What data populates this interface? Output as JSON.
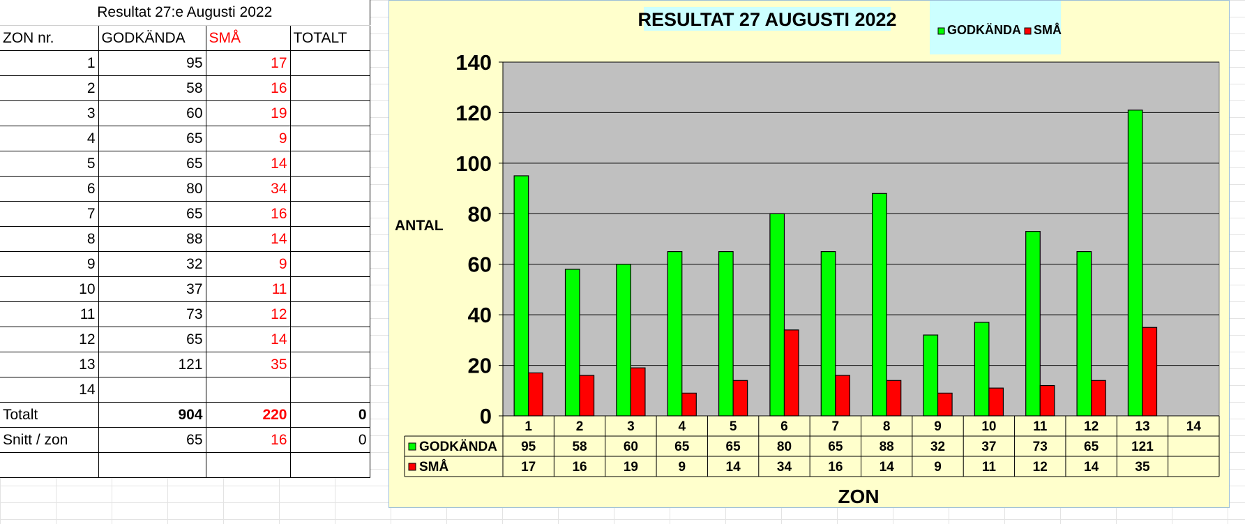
{
  "sheet": {
    "title": "Resultat 27:e Augusti 2022",
    "headers": [
      "ZON nr.",
      "GODKÄNDA",
      "SMÅ",
      "TOTALT"
    ],
    "rows": [
      {
        "zon": "1",
        "godkanda": "95",
        "sma": "17",
        "totalt": ""
      },
      {
        "zon": "2",
        "godkanda": "58",
        "sma": "16",
        "totalt": ""
      },
      {
        "zon": "3",
        "godkanda": "60",
        "sma": "19",
        "totalt": ""
      },
      {
        "zon": "4",
        "godkanda": "65",
        "sma": "9",
        "totalt": ""
      },
      {
        "zon": "5",
        "godkanda": "65",
        "sma": "14",
        "totalt": ""
      },
      {
        "zon": "6",
        "godkanda": "80",
        "sma": "34",
        "totalt": ""
      },
      {
        "zon": "7",
        "godkanda": "65",
        "sma": "16",
        "totalt": ""
      },
      {
        "zon": "8",
        "godkanda": "88",
        "sma": "14",
        "totalt": ""
      },
      {
        "zon": "9",
        "godkanda": "32",
        "sma": "9",
        "totalt": ""
      },
      {
        "zon": "10",
        "godkanda": "37",
        "sma": "11",
        "totalt": ""
      },
      {
        "zon": "11",
        "godkanda": "73",
        "sma": "12",
        "totalt": ""
      },
      {
        "zon": "12",
        "godkanda": "65",
        "sma": "14",
        "totalt": ""
      },
      {
        "zon": "13",
        "godkanda": "121",
        "sma": "35",
        "totalt": ""
      },
      {
        "zon": "14",
        "godkanda": "",
        "sma": "",
        "totalt": ""
      }
    ],
    "totals": {
      "label": "Totalt",
      "godkanda": "904",
      "sma": "220",
      "totalt": "0"
    },
    "average": {
      "label": "Snitt / zon",
      "godkanda": "65",
      "sma": "16",
      "totalt": "0"
    }
  },
  "chart_data": {
    "type": "bar",
    "title": "RESULTAT 27 AUGUSTI 2022",
    "xlabel": "ZON",
    "ylabel": "ANTAL",
    "categories": [
      "1",
      "2",
      "3",
      "4",
      "5",
      "6",
      "7",
      "8",
      "9",
      "10",
      "11",
      "12",
      "13",
      "14"
    ],
    "series": [
      {
        "name": "GODKÄNDA",
        "color": "#00ff00",
        "values": [
          95,
          58,
          60,
          65,
          65,
          80,
          65,
          88,
          32,
          37,
          73,
          65,
          121,
          null
        ]
      },
      {
        "name": "SMÅ",
        "color": "#ff0000",
        "values": [
          17,
          16,
          19,
          9,
          14,
          34,
          16,
          14,
          9,
          11,
          12,
          14,
          35,
          null
        ]
      }
    ],
    "ylim": [
      0,
      140
    ],
    "yticks": [
      "0",
      "20",
      "40",
      "60",
      "80",
      "100",
      "120",
      "140"
    ],
    "grid": true,
    "legend": "top-right",
    "data_table": true,
    "plot_background": "#c0c0c0",
    "chart_background": "#ffffcc",
    "legend_background": "#ccffff"
  }
}
